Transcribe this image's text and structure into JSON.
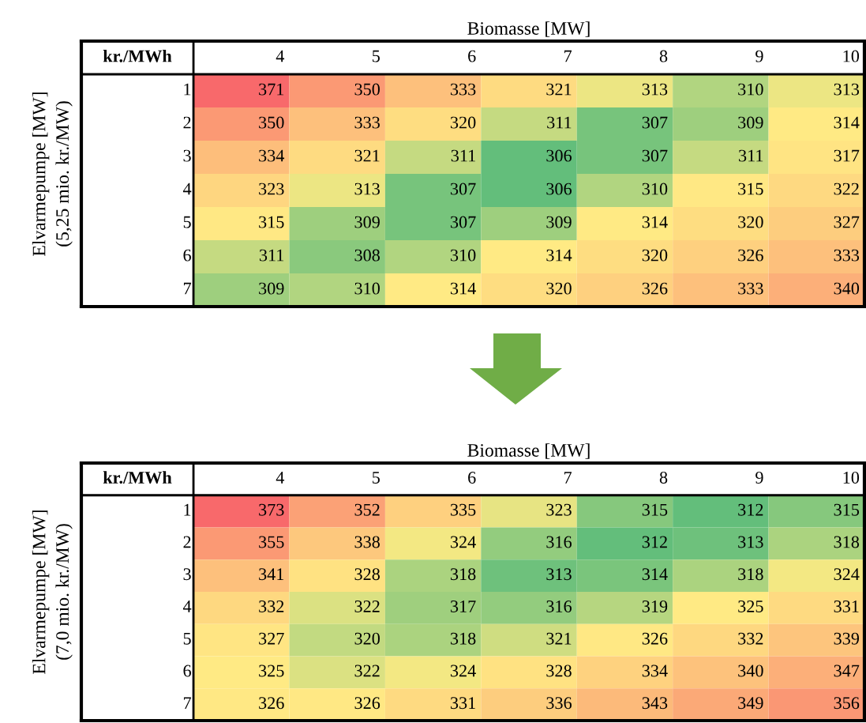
{
  "chart_data": [
    {
      "type": "heatmap",
      "xlabel": "Biomasse [MW]",
      "ylabel": "Elvarmepumpe [MW]\n(5,25 mio. kr./MW)",
      "annotations": [
        "kr./MWh"
      ],
      "data_labels": true,
      "categories": [
        "4",
        "5",
        "6",
        "7",
        "8",
        "9",
        "10"
      ],
      "y_categories": [
        "1",
        "2",
        "3",
        "4",
        "5",
        "6",
        "7"
      ],
      "cells": [
        [
          371,
          350,
          333,
          321,
          313,
          310,
          313
        ],
        [
          350,
          333,
          320,
          311,
          307,
          309,
          314
        ],
        [
          334,
          321,
          311,
          306,
          307,
          311,
          317
        ],
        [
          323,
          313,
          307,
          306,
          310,
          315,
          322
        ],
        [
          315,
          309,
          307,
          309,
          314,
          320,
          327
        ],
        [
          311,
          308,
          310,
          314,
          320,
          326,
          333
        ],
        [
          309,
          310,
          314,
          320,
          326,
          333,
          340
        ]
      ]
    },
    {
      "type": "heatmap",
      "xlabel": "Biomasse [MW]",
      "ylabel": "Elvarmepumpe [MW]\n(7,0 mio. kr./MW)",
      "annotations": [
        "kr./MWh"
      ],
      "data_labels": true,
      "categories": [
        "4",
        "5",
        "6",
        "7",
        "8",
        "9",
        "10"
      ],
      "y_categories": [
        "1",
        "2",
        "3",
        "4",
        "5",
        "6",
        "7"
      ],
      "cells": [
        [
          373,
          352,
          335,
          323,
          315,
          312,
          315
        ],
        [
          355,
          338,
          324,
          316,
          312,
          313,
          318
        ],
        [
          341,
          328,
          318,
          313,
          314,
          318,
          324
        ],
        [
          332,
          322,
          317,
          316,
          319,
          325,
          331
        ],
        [
          327,
          320,
          318,
          321,
          326,
          332,
          339
        ],
        [
          325,
          322,
          324,
          328,
          334,
          340,
          347
        ],
        [
          326,
          326,
          331,
          336,
          343,
          349,
          356
        ]
      ]
    }
  ]
}
